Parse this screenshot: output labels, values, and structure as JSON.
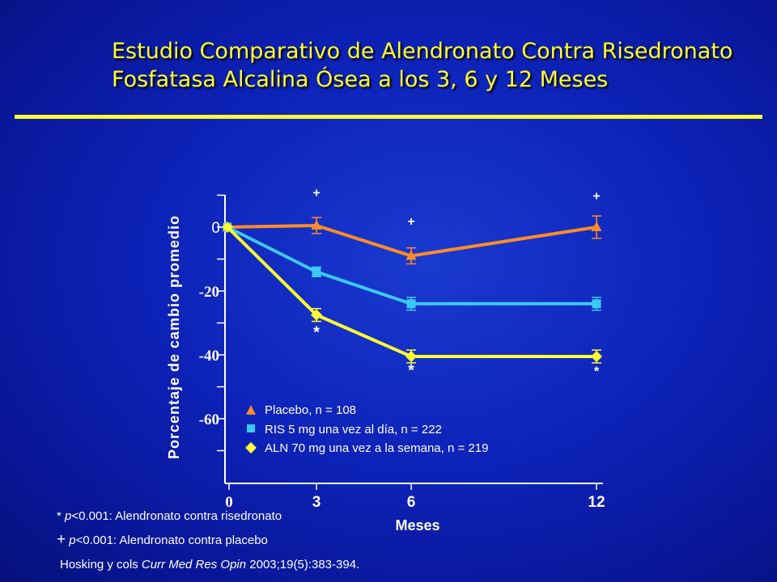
{
  "title": {
    "line1": "Estudio Comparativo de Alendronato Contra  Risedronato",
    "line2": "Fosfatasa Alcalina Ósea a los 3, 6 y 12 Meses"
  },
  "colors": {
    "title": "#ffff33",
    "placebo": "#ff8c29",
    "ris": "#3cc8f5",
    "aln": "#ffff33",
    "background": "#0d22b8"
  },
  "chart_data": {
    "type": "line",
    "xlabel": "Meses",
    "ylabel": "Porcentaje de cambio promedio",
    "x_ticks": [
      "0",
      "3",
      "6",
      "12"
    ],
    "y_ticks": [
      "0",
      "-20",
      "-40",
      "-60"
    ],
    "ylim": [
      -78,
      10
    ],
    "grid": false,
    "legend_position": "bottom-left inside",
    "x": [
      0,
      3,
      6,
      12
    ],
    "series": [
      {
        "key": "placebo",
        "name": "Placebo, n = 108",
        "marker": "triangle",
        "color": "#ff8c29",
        "values": [
          0,
          0.5,
          -9,
          0
        ],
        "error": [
          0,
          2.5,
          2.5,
          3.5
        ]
      },
      {
        "key": "ris",
        "name": "RIS 5 mg una vez al día, n = 222",
        "marker": "square",
        "color": "#3cc8f5",
        "values": [
          0,
          -14,
          -24,
          -24
        ],
        "error": [
          0,
          1.5,
          2,
          2
        ]
      },
      {
        "key": "aln",
        "name": "ALN 70 mg una vez a la semana, n = 219",
        "marker": "diamond",
        "color": "#ffff33",
        "values": [
          0,
          -27.5,
          -40.5,
          -40.5
        ],
        "error": [
          0,
          2,
          2,
          2
        ]
      }
    ],
    "annotations": [
      {
        "text": "+",
        "x": 3,
        "y": 9.5
      },
      {
        "text": "+",
        "x": 6,
        "y": 0.5
      },
      {
        "text": "+",
        "x": 12,
        "y": 8.5
      },
      {
        "text": "*",
        "x": 3,
        "y": -34.5
      },
      {
        "text": "*",
        "x": 6,
        "y": -46.5
      },
      {
        "text": "*",
        "x": 12,
        "y": -46.5
      }
    ]
  },
  "footnotes": {
    "star_symbol": "*",
    "star_p": "p",
    "star_text": "<0.001: Alendronato contra risedronato",
    "plus_symbol": "+",
    "plus_p": "p",
    "plus_text": "<0.001: Alendronato contra placebo",
    "ref_authors": "Hosking y cols ",
    "ref_journal": "Curr Med Res Opin",
    "ref_rest": " 2003;19(5):383-394."
  }
}
